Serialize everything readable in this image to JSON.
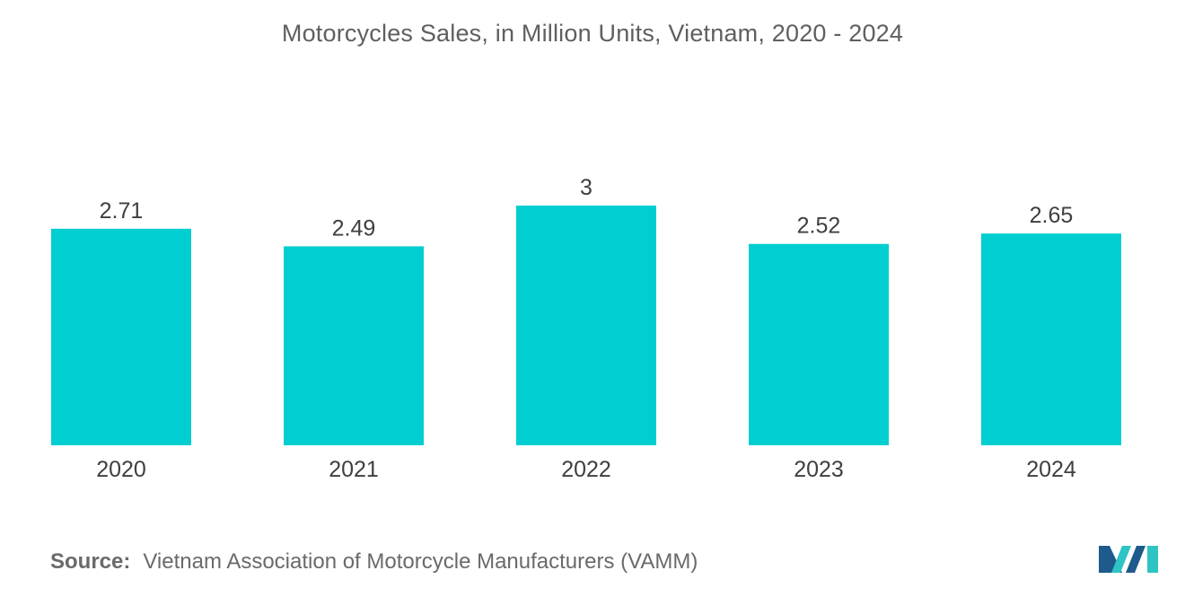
{
  "chart_data": {
    "type": "bar",
    "title": "Motorcycles Sales, in Million Units, Vietnam, 2020 - 2024",
    "categories": [
      "2020",
      "2021",
      "2022",
      "2023",
      "2024"
    ],
    "values": [
      2.71,
      2.49,
      3,
      2.52,
      2.65
    ],
    "value_labels": [
      "2.71",
      "2.49",
      "3",
      "2.52",
      "2.65"
    ],
    "xlabel": "",
    "ylabel": "",
    "ylim": [
      0,
      3
    ],
    "grid": false,
    "bar_color": "#00ced1"
  },
  "source": {
    "label": "Source:",
    "text": "Vietnam Association of Motorcycle Manufacturers (VAMM)"
  },
  "logo": {
    "icon": "mordor-intelligence-logo-icon",
    "colors": [
      "#1e5a8c",
      "#2ec4c4"
    ]
  }
}
